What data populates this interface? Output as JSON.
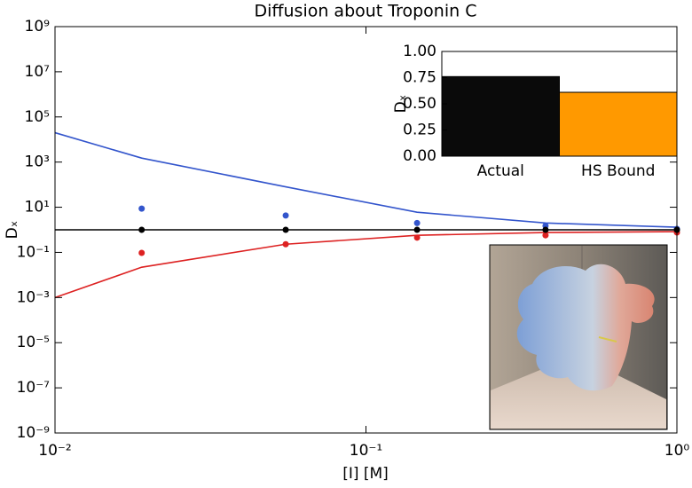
{
  "chart_data": [
    {
      "type": "line",
      "title": "Diffusion about Troponin C",
      "xlabel": "[I] [M]",
      "ylabel": "Dₓ",
      "log_x": true,
      "log_y": true,
      "x": [
        0.01,
        0.019,
        0.0552,
        0.146,
        0.378,
        1
      ],
      "series": [
        {
          "style": "line",
          "color": "#3355cc",
          "values": [
            20000,
            1500,
            80,
            6,
            2,
            1.3
          ]
        },
        {
          "style": "line",
          "color": "#dd2222",
          "values": [
            0.001,
            0.022,
            0.23,
            0.57,
            0.76,
            0.83
          ]
        },
        {
          "style": "line",
          "color": "#000000",
          "values": [
            1,
            1,
            1,
            1,
            1,
            1
          ]
        },
        {
          "style": "marker",
          "color": "#3355cc",
          "values": [
            null,
            8.7,
            4.3,
            2.0,
            1.5,
            1.1
          ]
        },
        {
          "style": "marker",
          "color": "#dd2222",
          "values": [
            null,
            0.095,
            0.23,
            0.45,
            0.57,
            0.76
          ]
        },
        {
          "style": "marker",
          "color": "#000000",
          "values": [
            null,
            1,
            1,
            1,
            1,
            1
          ]
        }
      ],
      "xlim": [
        0.01,
        1
      ],
      "xticks": [
        {
          "value": 0.01,
          "label": "10⁻²"
        },
        {
          "value": 0.1,
          "label": "10⁻¹"
        },
        {
          "value": 1,
          "label": "10⁰"
        }
      ],
      "ylim": [
        1e-09,
        1000000000.0
      ],
      "yticks": [
        {
          "value": 1e-09,
          "label": "10⁻⁹"
        },
        {
          "value": 1e-07,
          "label": "10⁻⁷"
        },
        {
          "value": 1e-05,
          "label": "10⁻⁵"
        },
        {
          "value": 0.001,
          "label": "10⁻³"
        },
        {
          "value": 0.1,
          "label": "10⁻¹"
        },
        {
          "value": 10,
          "label": "10¹"
        },
        {
          "value": 1000,
          "label": "10³"
        },
        {
          "value": 100000,
          "label": "10⁵"
        },
        {
          "value": 10000000,
          "label": "10⁷"
        },
        {
          "value": 1000000000,
          "label": "10⁹"
        }
      ]
    },
    {
      "type": "bar",
      "ylabel": "Dₓ",
      "categories": [
        "Actual",
        "HS Bound"
      ],
      "values": [
        0.76,
        0.61
      ],
      "colors": [
        "#0a0a0a",
        "#ff9900"
      ],
      "ylim": [
        0,
        1
      ],
      "yticks": [
        {
          "value": 0,
          "label": "0.00"
        },
        {
          "value": 0.25,
          "label": "0.25"
        },
        {
          "value": 0.5,
          "label": "0.50"
        },
        {
          "value": 0.75,
          "label": "0.75"
        },
        {
          "value": 1,
          "label": "1.00"
        }
      ]
    }
  ]
}
